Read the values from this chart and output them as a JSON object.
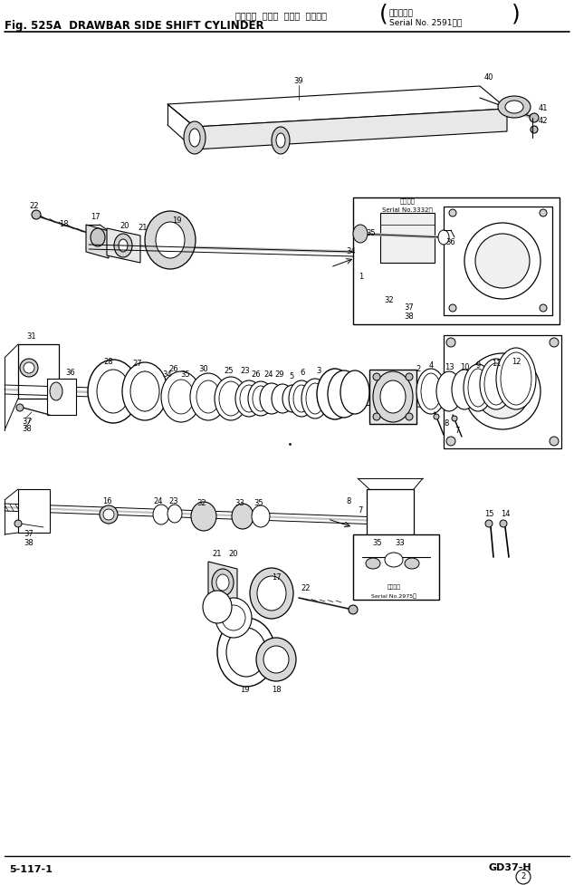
{
  "title_japanese": "ドローバ  サイド  シフト  シリンダ",
  "title_english": "Fig. 525A  DRAWBAR SIDE SHIFT CYLINDER",
  "serial_top1": "（通用号等",
  "serial_top2": "Serial No. 2591～）",
  "footer_left": "5-117-1",
  "footer_right": "GD37-H",
  "footer_num": "®",
  "bg_color": "#ffffff",
  "lc": "#000000",
  "fig_width": 6.34,
  "fig_height": 9.77,
  "dpi": 100
}
